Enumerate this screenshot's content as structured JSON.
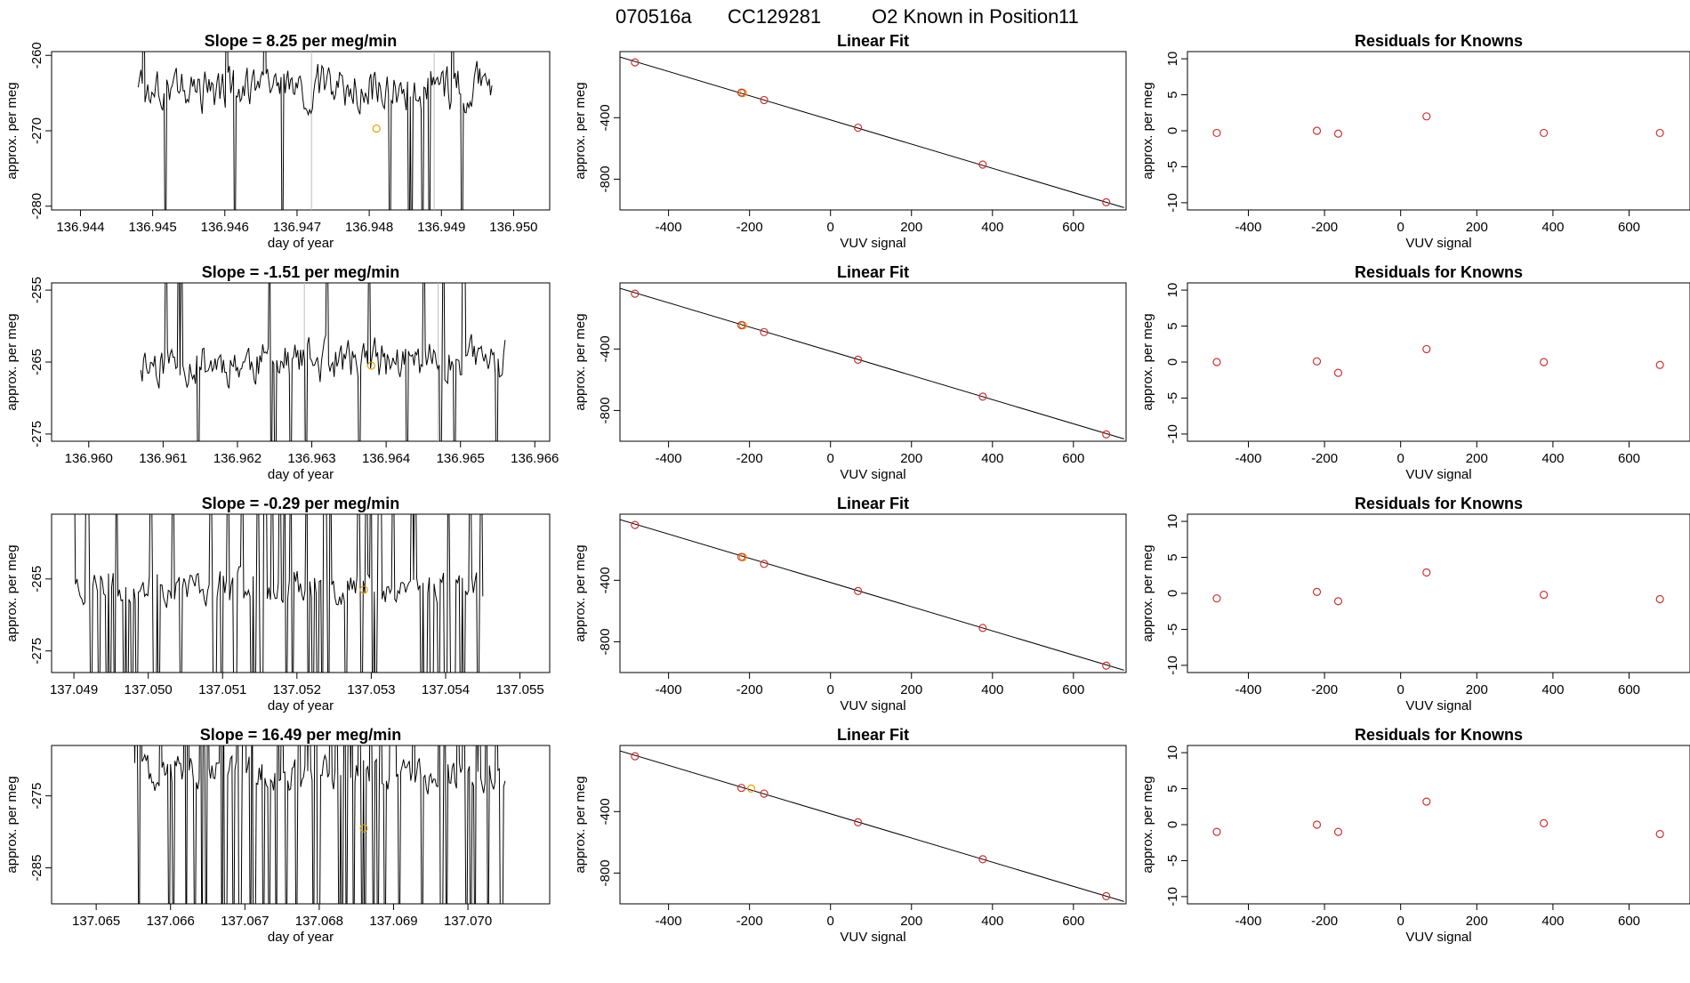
{
  "title": {
    "run": "070516a",
    "cylinder": "CC129281",
    "species_label": "O2 Known in Position",
    "position": "11"
  },
  "colors": {
    "line": "#000000",
    "known_point": "#cc3333",
    "unknown_point": "#e69f00",
    "grey_vline": "#bdbdbd"
  },
  "chart_data": [
    {
      "type": "line",
      "title": "Slope =  8.25  per meg/min",
      "xlabel": "day of year",
      "ylabel": "approx. per meg",
      "xlim": [
        136.9436,
        136.9505
      ],
      "ylim": [
        -280.5,
        -259.5
      ],
      "xticks": [
        136.944,
        136.945,
        136.946,
        136.947,
        136.948,
        136.949,
        136.95
      ],
      "xtick_labels": [
        "136.944",
        "136.945",
        "136.946",
        "136.947",
        "136.948",
        "136.949",
        "136.950"
      ],
      "yticks": [
        -280,
        -270,
        -260
      ],
      "ytick_labels": [
        "-280",
        "-270",
        "-260"
      ],
      "vlines": [
        136.9472,
        136.9489
      ],
      "highlight": {
        "x": 136.9481,
        "y": -269.7
      },
      "x_start": 136.9448,
      "x_end": 136.9497,
      "y_center": -264.5,
      "y_spread": 5,
      "spike_prob": 0.05,
      "seed": 3
    },
    {
      "type": "line",
      "title": "Slope =  -1.51  per meg/min",
      "xlabel": "day of year",
      "ylabel": "approx. per meg",
      "xlim": [
        136.9595,
        136.9662
      ],
      "ylim": [
        -276,
        -254
      ],
      "xticks": [
        136.96,
        136.961,
        136.962,
        136.963,
        136.964,
        136.965,
        136.966
      ],
      "xtick_labels": [
        "136.960",
        "136.961",
        "136.962",
        "136.963",
        "136.964",
        "136.965",
        "136.966"
      ],
      "yticks": [
        -275,
        -265,
        -255
      ],
      "ytick_labels": [
        "-275",
        "-265",
        "-255"
      ],
      "vlines": [
        136.9629,
        136.9647
      ],
      "highlight": {
        "x": 136.9638,
        "y": -265.5
      },
      "x_start": 136.9607,
      "x_end": 136.9656,
      "y_center": -265,
      "y_spread": 5,
      "spike_prob": 0.06,
      "seed": 11
    },
    {
      "type": "line",
      "title": "Slope =  -0.29  per meg/min",
      "xlabel": "day of year",
      "ylabel": "approx. per meg",
      "xlim": [
        137.0487,
        137.0554
      ],
      "ylim": [
        -278,
        -256
      ],
      "xticks": [
        137.049,
        137.05,
        137.051,
        137.052,
        137.053,
        137.054,
        137.055
      ],
      "xtick_labels": [
        "137.049",
        "137.050",
        "137.051",
        "137.052",
        "137.053",
        "137.054",
        "137.055"
      ],
      "yticks": [
        -275,
        -265
      ],
      "ytick_labels": [
        "-275",
        "-265"
      ],
      "vlines": [],
      "highlight": {
        "x": 137.0529,
        "y": -266.5
      },
      "x_start": 137.049,
      "x_end": 137.0545,
      "y_center": -266,
      "y_spread": 4,
      "spike_prob": 0.3,
      "seed": 23
    },
    {
      "type": "line",
      "title": "Slope =  16.49  per meg/min",
      "xlabel": "day of year",
      "ylabel": "approx. per meg",
      "xlim": [
        137.0644,
        137.0711
      ],
      "ylim": [
        -290,
        -268
      ],
      "xticks": [
        137.065,
        137.066,
        137.067,
        137.068,
        137.069,
        137.07
      ],
      "xtick_labels": [
        "137.065",
        "137.066",
        "137.067",
        "137.068",
        "137.069",
        "137.070"
      ],
      "yticks": [
        -285,
        -275
      ],
      "ytick_labels": [
        "-285",
        "-275"
      ],
      "vlines": [],
      "highlight": {
        "x": 137.0686,
        "y": -279.5
      },
      "x_start": 137.0655,
      "x_end": 137.0705,
      "y_center": -272,
      "y_spread": 4,
      "spike_prob": 0.32,
      "seed": 41
    },
    {
      "type": "scatter",
      "title": "Linear Fit",
      "xlabel": "VUV signal",
      "ylabel": "approx. per meg",
      "xlim": [
        -520,
        730
      ],
      "ylim": [
        -1000,
        30
      ],
      "xticks": [
        -400,
        -200,
        0,
        200,
        400,
        600
      ],
      "xtick_labels": [
        "-400",
        "-200",
        "0",
        "200",
        "400",
        "600"
      ],
      "yticks": [
        -800,
        -400
      ],
      "ytick_labels": [
        "-800",
        "-400"
      ],
      "fit_line": {
        "x": [
          -520,
          725
        ],
        "y": [
          -5,
          -985
        ]
      },
      "known_points": {
        "x": [
          -483,
          -220,
          -164,
          68,
          376,
          681
        ],
        "y": [
          -40,
          -237,
          -285,
          -465,
          -705,
          -950
        ]
      },
      "unknown_point": {
        "x": -216,
        "y": -240
      }
    },
    {
      "type": "scatter",
      "title": "Linear Fit",
      "xlabel": "VUV signal",
      "ylabel": "approx. per meg",
      "xlim": [
        -520,
        730
      ],
      "ylim": [
        -1000,
        30
      ],
      "xticks": [
        -400,
        -200,
        0,
        200,
        400,
        600
      ],
      "xtick_labels": [
        "-400",
        "-200",
        "0",
        "200",
        "400",
        "600"
      ],
      "yticks": [
        -800,
        -400
      ],
      "ytick_labels": [
        "-800",
        "-400"
      ],
      "fit_line": {
        "x": [
          -520,
          725
        ],
        "y": [
          -5,
          -985
        ]
      },
      "known_points": {
        "x": [
          -483,
          -220,
          -164,
          68,
          376,
          681
        ],
        "y": [
          -40,
          -245,
          -290,
          -470,
          -710,
          -955
        ]
      },
      "unknown_point": {
        "x": -216,
        "y": -246
      }
    },
    {
      "type": "scatter",
      "title": "Linear Fit",
      "xlabel": "VUV signal",
      "ylabel": "approx. per meg",
      "xlim": [
        -520,
        730
      ],
      "ylim": [
        -1000,
        30
      ],
      "xticks": [
        -400,
        -200,
        0,
        200,
        400,
        600
      ],
      "xtick_labels": [
        "-400",
        "-200",
        "0",
        "200",
        "400",
        "600"
      ],
      "yticks": [
        -800,
        -400
      ],
      "ytick_labels": [
        "-800",
        "-400"
      ],
      "fit_line": {
        "x": [
          -520,
          725
        ],
        "y": [
          -5,
          -985
        ]
      },
      "known_points": {
        "x": [
          -483,
          -220,
          -164,
          68,
          376,
          681
        ],
        "y": [
          -40,
          -248,
          -293,
          -470,
          -710,
          -955
        ]
      },
      "unknown_point": {
        "x": -216,
        "y": -250
      }
    },
    {
      "type": "scatter",
      "title": "Linear Fit",
      "xlabel": "VUV signal",
      "ylabel": "approx. per meg",
      "xlim": [
        -520,
        730
      ],
      "ylim": [
        -1000,
        30
      ],
      "xticks": [
        -400,
        -200,
        0,
        200,
        400,
        600
      ],
      "xtick_labels": [
        "-400",
        "-200",
        "0",
        "200",
        "400",
        "600"
      ],
      "yticks": [
        -800,
        -400
      ],
      "ytick_labels": [
        "-800",
        "-400"
      ],
      "fit_line": {
        "x": [
          -520,
          725
        ],
        "y": [
          -5,
          -985
        ]
      },
      "known_points": {
        "x": [
          -483,
          -220,
          -164,
          68,
          376,
          681
        ],
        "y": [
          -40,
          -246,
          -283,
          -470,
          -710,
          -950
        ]
      },
      "unknown_point": {
        "x": -196,
        "y": -250
      }
    },
    {
      "type": "scatter",
      "title": "Residuals for Knowns",
      "xlabel": "VUV signal",
      "ylabel": "approx. per meg",
      "xlim": [
        -560,
        760
      ],
      "ylim": [
        -11,
        11
      ],
      "xticks": [
        -400,
        -200,
        0,
        200,
        400,
        600
      ],
      "xtick_labels": [
        "-400",
        "-200",
        "0",
        "200",
        "400",
        "600"
      ],
      "yticks": [
        -10,
        -5,
        0,
        5,
        10
      ],
      "ytick_labels": [
        "-10",
        "-5",
        "0",
        "5",
        "10"
      ],
      "known_points": {
        "x": [
          -483,
          -220,
          -164,
          68,
          376,
          681
        ],
        "y": [
          -0.3,
          0.0,
          -0.4,
          2.0,
          -0.3,
          -0.3
        ]
      }
    },
    {
      "type": "scatter",
      "title": "Residuals for Knowns",
      "xlabel": "VUV signal",
      "ylabel": "approx. per meg",
      "xlim": [
        -560,
        760
      ],
      "ylim": [
        -11,
        11
      ],
      "xticks": [
        -400,
        -200,
        0,
        200,
        400,
        600
      ],
      "xtick_labels": [
        "-400",
        "-200",
        "0",
        "200",
        "400",
        "600"
      ],
      "yticks": [
        -10,
        -5,
        0,
        5,
        10
      ],
      "ytick_labels": [
        "-10",
        "-5",
        "0",
        "5",
        "10"
      ],
      "known_points": {
        "x": [
          -483,
          -220,
          -164,
          68,
          376,
          681
        ],
        "y": [
          0.0,
          0.1,
          -1.5,
          1.8,
          0.0,
          -0.4
        ]
      }
    },
    {
      "type": "scatter",
      "title": "Residuals for Knowns",
      "xlabel": "VUV signal",
      "ylabel": "approx. per meg",
      "xlim": [
        -560,
        760
      ],
      "ylim": [
        -11,
        11
      ],
      "xticks": [
        -400,
        -200,
        0,
        200,
        400,
        600
      ],
      "xtick_labels": [
        "-400",
        "-200",
        "0",
        "200",
        "400",
        "600"
      ],
      "yticks": [
        -10,
        -5,
        0,
        5,
        10
      ],
      "ytick_labels": [
        "-10",
        "-5",
        "0",
        "5",
        "10"
      ],
      "known_points": {
        "x": [
          -483,
          -220,
          -164,
          68,
          376,
          681
        ],
        "y": [
          -0.7,
          0.2,
          -1.1,
          2.9,
          -0.2,
          -0.8
        ]
      }
    },
    {
      "type": "scatter",
      "title": "Residuals for Knowns",
      "xlabel": "VUV signal",
      "ylabel": "approx. per meg",
      "xlim": [
        -560,
        760
      ],
      "ylim": [
        -11,
        11
      ],
      "xticks": [
        -400,
        -200,
        0,
        200,
        400,
        600
      ],
      "xtick_labels": [
        "-400",
        "-200",
        "0",
        "200",
        "400",
        "600"
      ],
      "yticks": [
        -10,
        -5,
        0,
        5,
        10
      ],
      "ytick_labels": [
        "-10",
        "-5",
        "0",
        "5",
        "10"
      ],
      "known_points": {
        "x": [
          -483,
          -220,
          -164,
          68,
          376,
          681
        ],
        "y": [
          -1.0,
          0.0,
          -1.0,
          3.2,
          0.2,
          -1.3
        ]
      }
    }
  ]
}
